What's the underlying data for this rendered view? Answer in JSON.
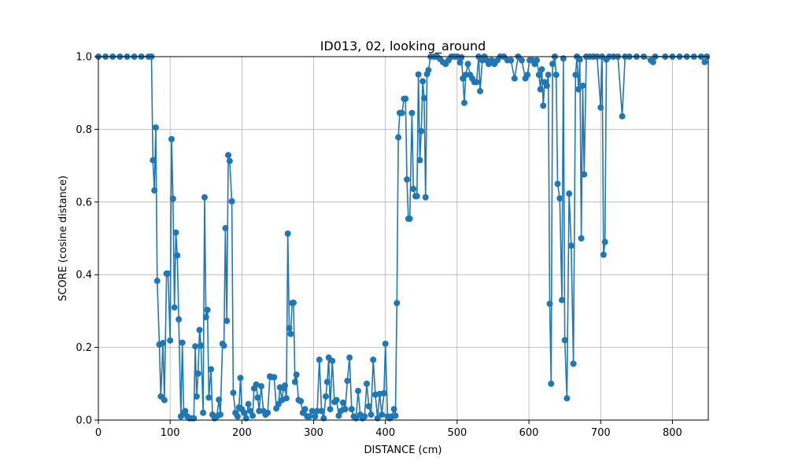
{
  "chart_data": {
    "type": "line",
    "title": "ID013, 02, looking_around",
    "xlabel": "DISTANCE (cm)",
    "ylabel": "SCORE (cosine distance)",
    "xlim": [
      0,
      850
    ],
    "ylim": [
      0,
      1
    ],
    "xticks": [
      "0",
      "100",
      "200",
      "300",
      "400",
      "500",
      "600",
      "700",
      "800"
    ],
    "yticks": [
      "0.0",
      "0.2",
      "0.4",
      "0.6",
      "0.8",
      "1.0"
    ],
    "grid": true,
    "markers": true,
    "series": [
      {
        "color": "#1f77b4",
        "points": [
          [
            0,
            1.0
          ],
          [
            10,
            1.0
          ],
          [
            20,
            1.0
          ],
          [
            30,
            1.0
          ],
          [
            40,
            1.0
          ],
          [
            50,
            1.0
          ],
          [
            60,
            1.0
          ],
          [
            70,
            1.0
          ],
          [
            74,
            1.0
          ],
          [
            76,
            0.715
          ],
          [
            78,
            0.632
          ],
          [
            80,
            0.805
          ],
          [
            82,
            0.383
          ],
          [
            85,
            0.208
          ],
          [
            87,
            0.065
          ],
          [
            90,
            0.212
          ],
          [
            92,
            0.055
          ],
          [
            95,
            0.403
          ],
          [
            97,
            0.403
          ],
          [
            100,
            0.219
          ],
          [
            102,
            0.773
          ],
          [
            104,
            0.609
          ],
          [
            106,
            0.31
          ],
          [
            108,
            0.516
          ],
          [
            110,
            0.453
          ],
          [
            112,
            0.277
          ],
          [
            115,
            0.01
          ],
          [
            117,
            0.213
          ],
          [
            119,
            0.02
          ],
          [
            121,
            0.025
          ],
          [
            124,
            0.01
          ],
          [
            127,
            0.005
          ],
          [
            130,
            0.005
          ],
          [
            133,
            0.005
          ],
          [
            135,
            0.203
          ],
          [
            137,
            0.065
          ],
          [
            139,
            0.128
          ],
          [
            141,
            0.248
          ],
          [
            143,
            0.205
          ],
          [
            146,
            0.02
          ],
          [
            148,
            0.613
          ],
          [
            150,
            0.283
          ],
          [
            152,
            0.303
          ],
          [
            154,
            0.062
          ],
          [
            157,
            0.14
          ],
          [
            159,
            0.015
          ],
          [
            162,
            0.005
          ],
          [
            165,
            0.01
          ],
          [
            168,
            0.056
          ],
          [
            170,
            0.015
          ],
          [
            173,
            0.21
          ],
          [
            175,
            0.205
          ],
          [
            177,
            0.528
          ],
          [
            179,
            0.273
          ],
          [
            181,
            0.729
          ],
          [
            183,
            0.713
          ],
          [
            186,
            0.602
          ],
          [
            188,
            0.075
          ],
          [
            191,
            0.02
          ],
          [
            194,
            0.01
          ],
          [
            196,
            0.035
          ],
          [
            198,
            0.116
          ],
          [
            200,
            0.03
          ],
          [
            203,
            0.02
          ],
          [
            206,
            0.005
          ],
          [
            209,
            0.044
          ],
          [
            212,
            0.025
          ],
          [
            215,
            0.012
          ],
          [
            217,
            0.087
          ],
          [
            220,
            0.098
          ],
          [
            222,
            0.062
          ],
          [
            224,
            0.025
          ],
          [
            227,
            0.093
          ],
          [
            230,
            0.025
          ],
          [
            233,
            0.015
          ],
          [
            236,
            0.02
          ],
          [
            239,
            0.12
          ],
          [
            242,
            0.118
          ],
          [
            245,
            0.118
          ],
          [
            248,
            0.032
          ],
          [
            251,
            0.044
          ],
          [
            253,
            0.09
          ],
          [
            256,
            0.055
          ],
          [
            258,
            0.088
          ],
          [
            260,
            0.095
          ],
          [
            262,
            0.06
          ],
          [
            264,
            0.513
          ],
          [
            266,
            0.253
          ],
          [
            268,
            0.237
          ],
          [
            270,
            0.322
          ],
          [
            272,
            0.323
          ],
          [
            274,
            0.105
          ],
          [
            276,
            0.125
          ],
          [
            279,
            0.055
          ],
          [
            282,
            0.052
          ],
          [
            285,
            0.02
          ],
          [
            288,
            0.03
          ],
          [
            291,
            0.01
          ],
          [
            294,
            0.01
          ],
          [
            298,
            0.025
          ],
          [
            302,
            0.01
          ],
          [
            305,
            0.025
          ],
          [
            308,
            0.166
          ],
          [
            311,
            0.025
          ],
          [
            314,
            0.005
          ],
          [
            317,
            0.065
          ],
          [
            319,
            0.105
          ],
          [
            321,
            0.172
          ],
          [
            323,
            0.03
          ],
          [
            326,
            0.163
          ],
          [
            329,
            0.05
          ],
          [
            332,
            0.055
          ],
          [
            335,
            0.012
          ],
          [
            338,
            0.025
          ],
          [
            341,
            0.048
          ],
          [
            344,
            0.03
          ],
          [
            347,
            0.108
          ],
          [
            350,
            0.172
          ],
          [
            353,
            0.03
          ],
          [
            356,
            0.01
          ],
          [
            359,
            0.005
          ],
          [
            362,
            0.08
          ],
          [
            365,
            0.015
          ],
          [
            368,
            0.005
          ],
          [
            371,
            0.01
          ],
          [
            374,
            0.1
          ],
          [
            377,
            0.038
          ],
          [
            380,
            0.015
          ],
          [
            383,
            0.166
          ],
          [
            386,
            0.07
          ],
          [
            389,
            0.005
          ],
          [
            392,
            0.072
          ],
          [
            395,
            0.015
          ],
          [
            398,
            0.074
          ],
          [
            400,
            0.21
          ],
          [
            403,
            0.01
          ],
          [
            406,
            0.005
          ],
          [
            409,
            0.01
          ],
          [
            412,
            0.03
          ],
          [
            414,
            0.012
          ],
          [
            416,
            0.322
          ],
          [
            418,
            0.778
          ],
          [
            420,
            0.845
          ],
          [
            423,
            0.845
          ],
          [
            426,
            0.884
          ],
          [
            428,
            0.884
          ],
          [
            430,
            0.662
          ],
          [
            432,
            0.554
          ],
          [
            434,
            0.554
          ],
          [
            437,
            0.845
          ],
          [
            439,
            0.636
          ],
          [
            442,
            0.616
          ],
          [
            444,
            0.616
          ],
          [
            446,
            0.951
          ],
          [
            448,
            0.715
          ],
          [
            450,
            0.795
          ],
          [
            452,
            0.932
          ],
          [
            454,
            0.886
          ],
          [
            456,
            0.613
          ],
          [
            458,
            0.952
          ],
          [
            460,
            0.963
          ],
          [
            463,
            1.0
          ],
          [
            468,
            1.0
          ],
          [
            472,
            1.0
          ],
          [
            476,
            0.994
          ],
          [
            480,
            0.985
          ],
          [
            484,
            0.98
          ],
          [
            488,
            0.99
          ],
          [
            492,
            1.0
          ],
          [
            496,
            1.0
          ],
          [
            500,
            1.0
          ],
          [
            504,
            0.984
          ],
          [
            506,
            0.998
          ],
          [
            508,
            0.94
          ],
          [
            510,
            0.873
          ],
          [
            512,
            0.95
          ],
          [
            515,
            0.98
          ],
          [
            518,
            0.95
          ],
          [
            521,
            0.94
          ],
          [
            524,
            0.93
          ],
          [
            527,
            0.93
          ],
          [
            530,
            1.0
          ],
          [
            532,
            0.905
          ],
          [
            535,
            0.99
          ],
          [
            538,
            1.0
          ],
          [
            541,
            0.99
          ],
          [
            544,
            0.98
          ],
          [
            548,
            0.99
          ],
          [
            552,
            0.98
          ],
          [
            556,
            0.99
          ],
          [
            560,
            1.0
          ],
          [
            565,
            1.0
          ],
          [
            570,
            0.99
          ],
          [
            575,
            0.99
          ],
          [
            580,
            0.94
          ],
          [
            585,
            1.0
          ],
          [
            590,
            0.99
          ],
          [
            595,
            0.94
          ],
          [
            598,
            0.95
          ],
          [
            601,
            0.99
          ],
          [
            605,
            0.99
          ],
          [
            608,
            0.98
          ],
          [
            611,
            0.99
          ],
          [
            614,
            0.95
          ],
          [
            616,
            0.91
          ],
          [
            618,
            0.965
          ],
          [
            620,
            0.865
          ],
          [
            622,
            0.93
          ],
          [
            625,
            0.92
          ],
          [
            627,
            0.95
          ],
          [
            629,
            0.32
          ],
          [
            631,
            0.1
          ],
          [
            633,
            0.98
          ],
          [
            636,
            1.0
          ],
          [
            638,
            0.95
          ],
          [
            640,
            0.65
          ],
          [
            643,
            0.61
          ],
          [
            646,
            0.33
          ],
          [
            648,
            0.995
          ],
          [
            650,
            0.22
          ],
          [
            653,
            0.06
          ],
          [
            656,
            0.623
          ],
          [
            659,
            0.48
          ],
          [
            662,
            0.155
          ],
          [
            665,
            0.95
          ],
          [
            667,
            1.0
          ],
          [
            669,
            0.91
          ],
          [
            671,
            0.992
          ],
          [
            673,
            0.5
          ],
          [
            675,
            0.92
          ],
          [
            677,
            0.676
          ],
          [
            680,
            1.0
          ],
          [
            685,
            1.0
          ],
          [
            690,
            1.0
          ],
          [
            695,
            1.0
          ],
          [
            700,
            0.86
          ],
          [
            702,
            1.0
          ],
          [
            704,
            0.455
          ],
          [
            706,
            0.49
          ],
          [
            708,
            0.992
          ],
          [
            712,
            1.0
          ],
          [
            718,
            1.0
          ],
          [
            724,
            1.0
          ],
          [
            730,
            0.836
          ],
          [
            734,
            1.0
          ],
          [
            740,
            1.0
          ],
          [
            750,
            1.0
          ],
          [
            760,
            1.0
          ],
          [
            770,
            0.99
          ],
          [
            773,
            0.985
          ],
          [
            776,
            1.0
          ],
          [
            790,
            1.0
          ],
          [
            800,
            1.0
          ],
          [
            810,
            1.0
          ],
          [
            820,
            1.0
          ],
          [
            830,
            1.0
          ],
          [
            840,
            1.0
          ],
          [
            845,
            0.985
          ],
          [
            848,
            1.0
          ]
        ]
      }
    ]
  }
}
